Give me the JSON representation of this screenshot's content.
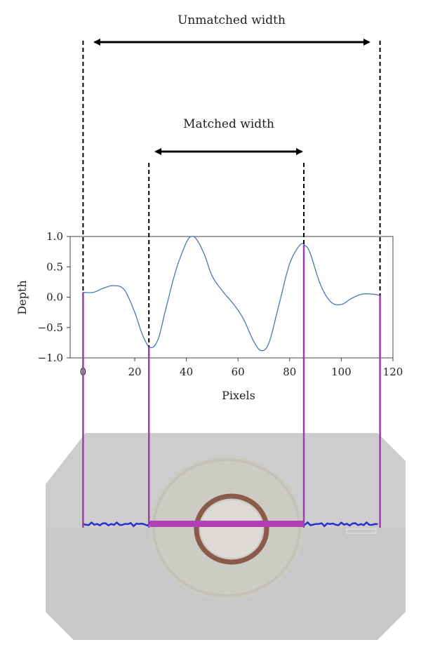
{
  "annotations": {
    "unmatched_label": "Unmatched width",
    "matched_label": "Matched width"
  },
  "colors": {
    "curve": "#4a78b5",
    "marker": "#9b3fa8",
    "scan_line": "#2a2fc8",
    "photo_bg": "#c9c9cc",
    "disc": "#cfcdc6",
    "ring": "#8a5a4a"
  },
  "chart_data": {
    "type": "line",
    "xlabel": "Pixels",
    "ylabel": "Depth",
    "xlim": [
      -5,
      120
    ],
    "ylim": [
      -1.0,
      1.0
    ],
    "xticks": [
      0,
      20,
      40,
      60,
      80,
      100,
      120
    ],
    "yticks": [
      1.0,
      0.5,
      0.0,
      -0.5,
      -1.0
    ],
    "ytick_labels": [
      "1.0",
      "0.5",
      "0.0",
      "−0.5",
      "−1.0"
    ],
    "grid": false,
    "series": [
      {
        "x": [
          0,
          4,
          8,
          12,
          16,
          20,
          23,
          26,
          29,
          32,
          36,
          40,
          42,
          44,
          47,
          50,
          54,
          58,
          62,
          66,
          69,
          72,
          76,
          80,
          84,
          86,
          88,
          92,
          96,
          100,
          104,
          108,
          112,
          115
        ],
        "y": [
          0.08,
          0.08,
          0.15,
          0.19,
          0.12,
          -0.25,
          -0.62,
          -0.83,
          -0.7,
          -0.2,
          0.45,
          0.9,
          1.0,
          0.95,
          0.7,
          0.35,
          0.1,
          -0.1,
          -0.35,
          -0.72,
          -0.88,
          -0.75,
          -0.1,
          0.55,
          0.86,
          0.85,
          0.72,
          0.2,
          -0.08,
          -0.12,
          -0.02,
          0.05,
          0.05,
          0.03
        ]
      }
    ],
    "markers": {
      "unmatched": [
        0,
        115
      ],
      "matched": [
        25.5,
        85.5
      ]
    }
  }
}
